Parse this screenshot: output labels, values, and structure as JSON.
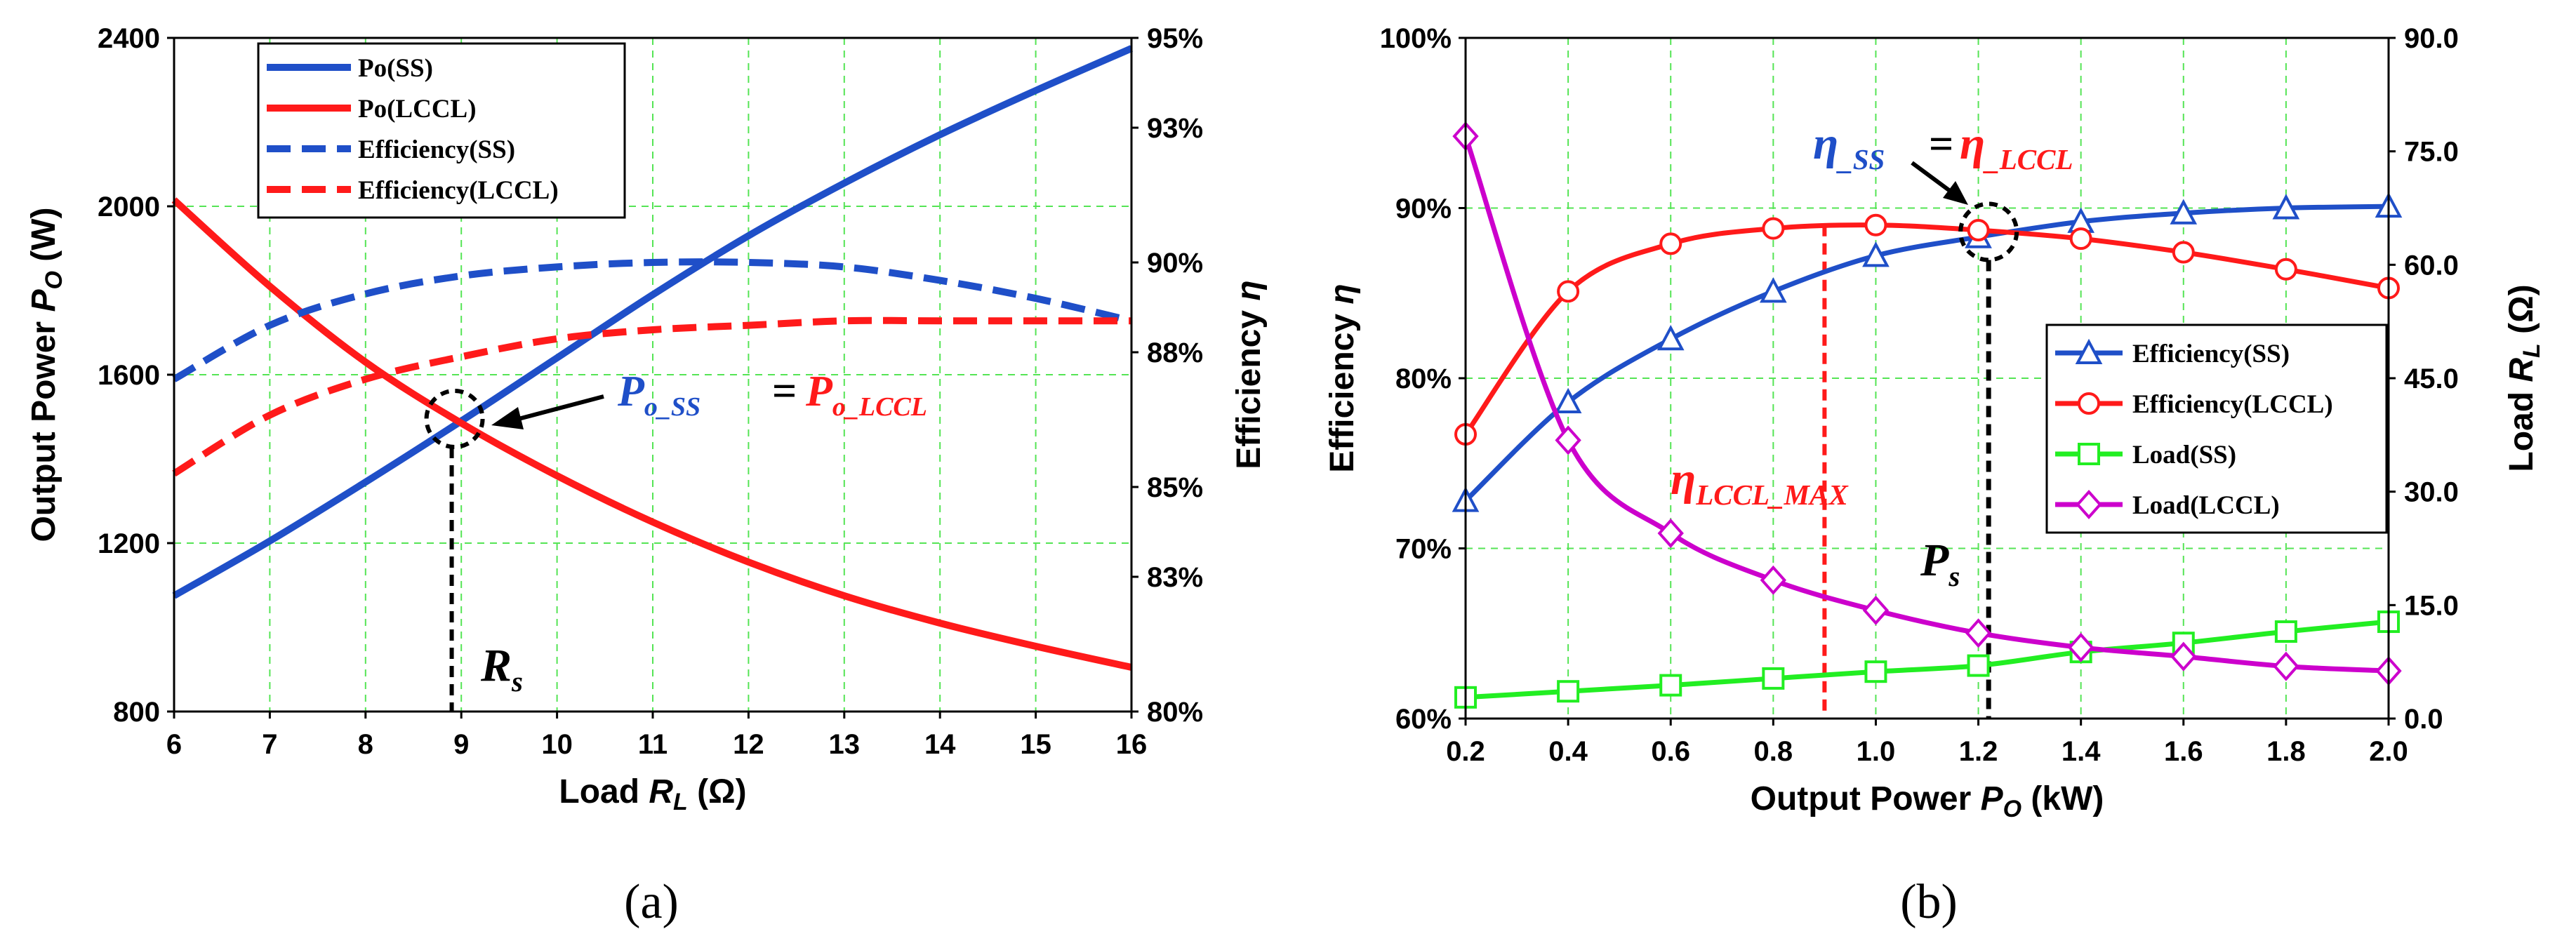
{
  "chart_data": [
    {
      "id": "a",
      "type": "line",
      "caption": "(a)",
      "xlabel_prefix": "Load ",
      "xlabel_var": "R",
      "xlabel_sub": "L",
      "xlabel_unit": " (Ω)",
      "ylabel_left_prefix": "Output Power ",
      "ylabel_left_var": "P",
      "ylabel_left_sub": "O",
      "ylabel_left_unit": " (W)",
      "ylabel_right_prefix": "Efficiency ",
      "ylabel_right_var": "η",
      "xlim": [
        6,
        16
      ],
      "ylim_left": [
        800,
        2400
      ],
      "ylim_right": [
        80,
        95
      ],
      "x_ticks": [
        "6",
        "7",
        "8",
        "9",
        "10",
        "11",
        "12",
        "13",
        "14",
        "15",
        "16"
      ],
      "y_left_ticks": [
        "800",
        "1200",
        "1600",
        "2000",
        "2400"
      ],
      "y_right_ticks": [
        "80%",
        "83%",
        "85%",
        "88%",
        "90%",
        "93%",
        "95%"
      ],
      "series": [
        {
          "name": "Po(SS)",
          "axis": "left",
          "color": "#1f4fc8",
          "dash": false,
          "x": [
            6,
            7,
            8,
            9,
            10,
            11,
            12,
            13,
            14,
            15,
            16
          ],
          "values": [
            1075,
            1205,
            1345,
            1490,
            1640,
            1790,
            1930,
            2055,
            2170,
            2275,
            2375
          ]
        },
        {
          "name": "Po(LCCL)",
          "axis": "left",
          "color": "#ff1a1a",
          "dash": false,
          "x": [
            6,
            7,
            8,
            9,
            10,
            11,
            12,
            13,
            14,
            15,
            16
          ],
          "values": [
            2015,
            1810,
            1630,
            1485,
            1360,
            1250,
            1155,
            1075,
            1010,
            955,
            905
          ]
        },
        {
          "name": "Efficiency(SS)",
          "axis": "right",
          "color": "#1f4fc8",
          "dash": true,
          "x": [
            6,
            7,
            8,
            9,
            10,
            11,
            12,
            13,
            14,
            15,
            16
          ],
          "values": [
            87.4,
            88.6,
            89.3,
            89.7,
            89.9,
            90.0,
            90.0,
            89.9,
            89.6,
            89.2,
            88.7
          ]
        },
        {
          "name": "Efficiency(LCCL)",
          "axis": "right",
          "color": "#ff1a1a",
          "dash": true,
          "x": [
            6,
            7,
            8,
            9,
            10,
            11,
            12,
            13,
            14,
            15,
            16
          ],
          "values": [
            85.3,
            86.6,
            87.4,
            87.9,
            88.3,
            88.5,
            88.6,
            88.7,
            88.7,
            88.7,
            88.7
          ]
        }
      ],
      "annotations": {
        "equality_left_var": "P",
        "equality_left_sub": "o_SS",
        "equality_eq": "=",
        "equality_right_var": "P",
        "equality_right_sub": "o_LCCL",
        "marker_var": "R",
        "marker_sub": "s",
        "marker_x": 8.9,
        "cross_y": 1495
      }
    },
    {
      "id": "b",
      "type": "line",
      "caption": "(b)",
      "xlabel_prefix": "Output Power ",
      "xlabel_var": "P",
      "xlabel_sub": "O",
      "xlabel_unit": " (kW)",
      "ylabel_left_prefix": "Efficiency ",
      "ylabel_left_var": "η",
      "ylabel_right_prefix": "Load ",
      "ylabel_right_var": "R",
      "ylabel_right_sub": "L",
      "ylabel_right_unit": " (Ω)",
      "xlim": [
        0.2,
        2.0
      ],
      "ylim_left": [
        60,
        100
      ],
      "ylim_right": [
        0,
        90
      ],
      "x_ticks": [
        "0.2",
        "0.4",
        "0.6",
        "0.8",
        "1.0",
        "1.2",
        "1.4",
        "1.6",
        "1.8",
        "2.0"
      ],
      "y_left_ticks": [
        "60%",
        "70%",
        "80%",
        "90%",
        "100%"
      ],
      "y_right_ticks": [
        "0.0",
        "15.0",
        "30.0",
        "45.0",
        "60.0",
        "75.0",
        "90.0"
      ],
      "series": [
        {
          "name": "Efficiency(SS)",
          "axis": "left",
          "color": "#1f4fc8",
          "marker": "triangle",
          "x": [
            0.2,
            0.4,
            0.6,
            0.8,
            1.0,
            1.2,
            1.4,
            1.6,
            1.8,
            2.0
          ],
          "values": [
            72.8,
            78.6,
            82.3,
            85.1,
            87.2,
            88.3,
            89.2,
            89.7,
            90.0,
            90.1
          ]
        },
        {
          "name": "Efficiency(LCCL)",
          "axis": "left",
          "color": "#ff1a1a",
          "marker": "circle",
          "x": [
            0.2,
            0.4,
            0.6,
            0.8,
            1.0,
            1.2,
            1.4,
            1.6,
            1.8,
            2.0
          ],
          "values": [
            76.7,
            85.1,
            87.9,
            88.8,
            89.0,
            88.7,
            88.2,
            87.4,
            86.4,
            85.3
          ]
        },
        {
          "name": "Load(SS)",
          "axis": "right",
          "color": "#22ee22",
          "marker": "square",
          "x": [
            0.2,
            0.4,
            0.6,
            0.8,
            1.0,
            1.2,
            1.4,
            1.6,
            1.8,
            2.0
          ],
          "values": [
            2.8,
            3.6,
            4.4,
            5.3,
            6.2,
            7.0,
            8.8,
            10.0,
            11.5,
            12.8
          ]
        },
        {
          "name": "Load(LCCL)",
          "axis": "right",
          "color": "#cc00cc",
          "marker": "diamond",
          "x": [
            0.2,
            0.4,
            0.6,
            0.8,
            1.0,
            1.2,
            1.4,
            1.6,
            1.8,
            2.0
          ],
          "values": [
            77.0,
            36.8,
            24.5,
            18.3,
            14.3,
            11.3,
            9.4,
            8.2,
            6.9,
            6.3
          ]
        }
      ],
      "annotations": {
        "equality_left_var": "η",
        "equality_left_sub": "_SS",
        "equality_eq": "=",
        "equality_right_var": "η",
        "equality_right_sub": "_LCCL",
        "max_var": "η",
        "max_sub": "LCCL_MAX",
        "max_x": 0.9,
        "ps_var": "P",
        "ps_sub": "s",
        "ps_x": 1.22,
        "cross_y": 88.6
      }
    }
  ]
}
